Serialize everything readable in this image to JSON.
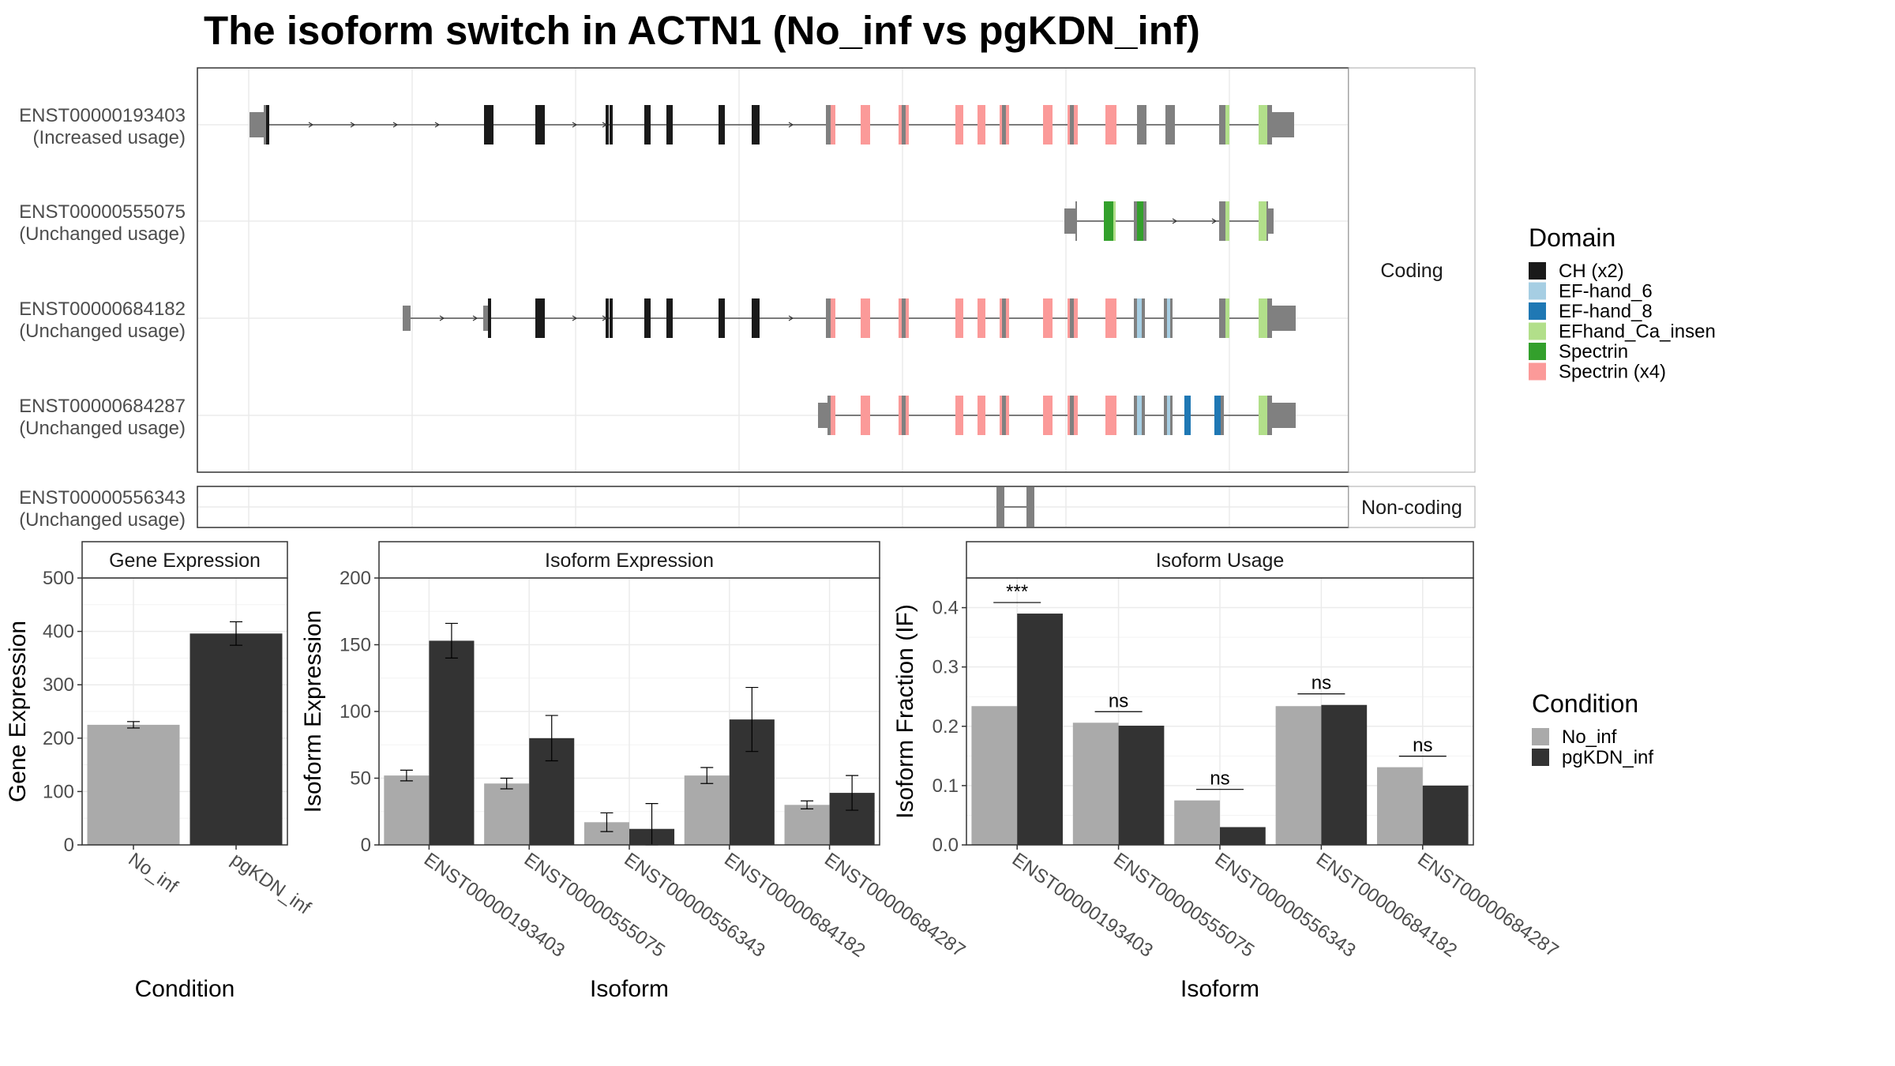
{
  "title": "The isoform switch in ACTN1 (No_inf vs pgKDN_inf)",
  "colors": {
    "No_inf": "#aaaaaa",
    "pgKDN_inf": "#333333",
    "utr": "#808080",
    "intron": "#333333",
    "CH (x2)": "#1a1a1a",
    "EF-hand_6": "#a6cee3",
    "EF-hand_8": "#1f78b4",
    "EFhand_Ca_insen": "#b2df8a",
    "Spectrin": "#33a02c",
    "Spectrin (x4)": "#fb9a99"
  },
  "structure": {
    "facet_labels": [
      "Coding",
      "Non-coding"
    ],
    "isoforms": [
      {
        "id": "ENST00000193403",
        "usage": "(Increased usage)",
        "type": "Coding"
      },
      {
        "id": "ENST00000555075",
        "usage": "(Unchanged usage)",
        "type": "Coding"
      },
      {
        "id": "ENST00000684182",
        "usage": "(Unchanged usage)",
        "type": "Coding"
      },
      {
        "id": "ENST00000684287",
        "usage": "(Unchanged usage)",
        "type": "Coding"
      },
      {
        "id": "ENST00000556343",
        "usage": "(Unchanged usage)",
        "type": "Non-coding"
      }
    ],
    "legend_title": "Domain",
    "legend_items": [
      "CH (x2)",
      "EF-hand_6",
      "EF-hand_8",
      "EFhand_Ca_insen",
      "Spectrin",
      "Spectrin (x4)"
    ]
  },
  "chart_data": [
    {
      "type": "bar",
      "title": "Gene Expression",
      "xlabel": "Condition",
      "ylabel": "Gene Expression",
      "categories": [
        "No_inf",
        "pgKDN_inf"
      ],
      "values": [
        225,
        396
      ],
      "errors": [
        6,
        22
      ],
      "ylim": [
        0,
        500
      ],
      "yticks": [
        0,
        100,
        200,
        300,
        400,
        500
      ],
      "grid": true
    },
    {
      "type": "bar",
      "title": "Isoform Expression",
      "xlabel": "Isoform",
      "ylabel": "Isoform Expression",
      "categories": [
        "ENST00000193403",
        "ENST00000555075",
        "ENST00000556343",
        "ENST00000684182",
        "ENST00000684287"
      ],
      "series": [
        {
          "name": "No_inf",
          "values": [
            52,
            46,
            17,
            52,
            30
          ],
          "errors": [
            4,
            4,
            7,
            6,
            3
          ]
        },
        {
          "name": "pgKDN_inf",
          "values": [
            153,
            80,
            12,
            94,
            39
          ],
          "errors": [
            13,
            17,
            19,
            24,
            13
          ]
        }
      ],
      "ylim": [
        0,
        200
      ],
      "yticks": [
        0,
        50,
        100,
        150,
        200
      ],
      "grid": true
    },
    {
      "type": "bar",
      "title": "Isoform Usage",
      "xlabel": "Isoform",
      "ylabel": "Isoform Fraction (IF)",
      "categories": [
        "ENST00000193403",
        "ENST00000555075",
        "ENST00000556343",
        "ENST00000684182",
        "ENST00000684287"
      ],
      "series": [
        {
          "name": "No_inf",
          "values": [
            0.234,
            0.206,
            0.075,
            0.234,
            0.131
          ]
        },
        {
          "name": "pgKDN_inf",
          "values": [
            0.39,
            0.201,
            0.03,
            0.236,
            0.1
          ]
        }
      ],
      "annotations": [
        "***",
        "ns",
        "ns",
        "ns",
        "ns"
      ],
      "ylim": [
        0,
        0.45
      ],
      "yticks": [
        0.0,
        0.1,
        0.2,
        0.3,
        0.4
      ],
      "legend_title": "Condition",
      "legend_position": "right",
      "grid": true
    }
  ]
}
